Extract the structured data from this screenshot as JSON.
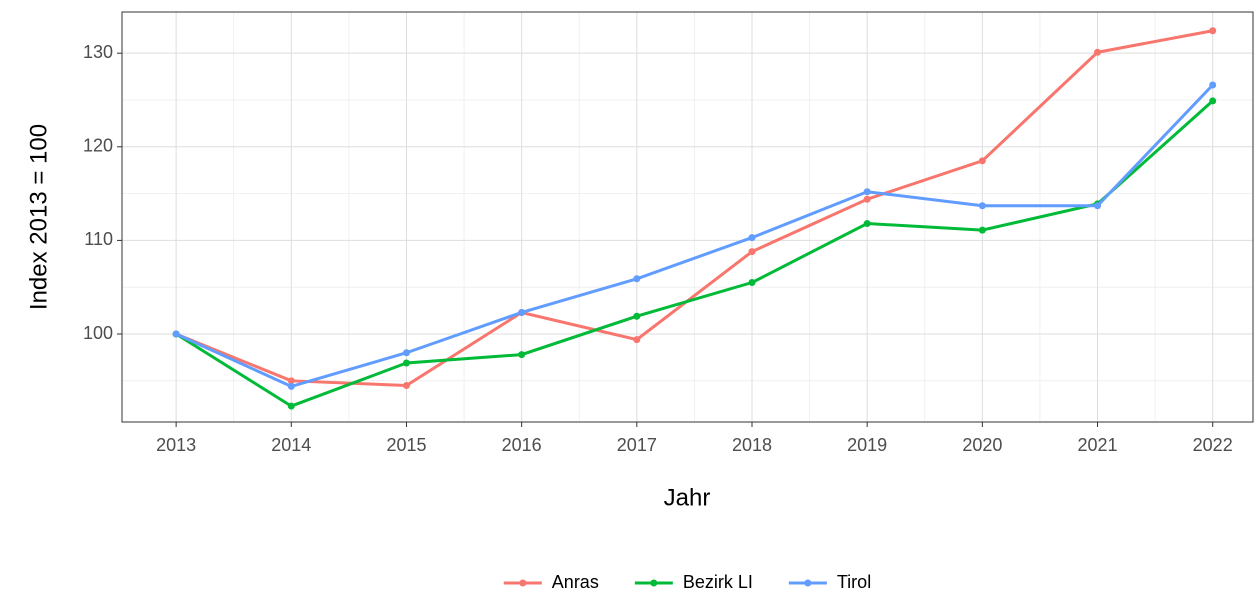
{
  "chart_data": {
    "type": "line",
    "x_label": "Jahr",
    "y_label": "Index  2013  = 100",
    "x": [
      2013,
      2014,
      2015,
      2016,
      2017,
      2018,
      2019,
      2020,
      2021,
      2022
    ],
    "series": [
      {
        "name": "Anras",
        "color": "#F8766D",
        "values": [
          100,
          95.0,
          94.5,
          102.3,
          99.4,
          108.8,
          114.4,
          118.5,
          130.1,
          132.4
        ]
      },
      {
        "name": "Bezirk LI",
        "color": "#00BA38",
        "values": [
          100,
          92.3,
          96.9,
          97.8,
          101.9,
          105.5,
          111.8,
          111.1,
          113.9,
          124.9
        ]
      },
      {
        "name": "Tirol",
        "color": "#619CFF",
        "values": [
          100,
          94.4,
          98.0,
          102.3,
          105.9,
          110.3,
          115.2,
          113.7,
          113.7,
          126.6
        ]
      }
    ],
    "xlim": [
      2012.53,
      2022.35
    ],
    "xticks": [
      2013,
      2014,
      2015,
      2016,
      2017,
      2018,
      2019,
      2020,
      2021,
      2022
    ],
    "ylim": [
      90.6,
      134.4
    ],
    "yticks": [
      100,
      110,
      120,
      130
    ],
    "grid": true,
    "legend": "bottom"
  }
}
